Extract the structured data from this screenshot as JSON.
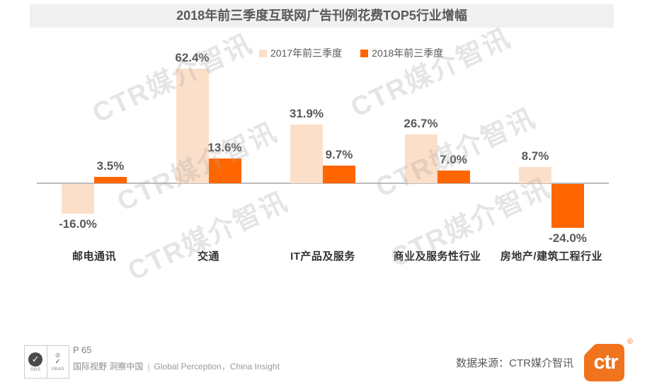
{
  "title_bar": "2018年前三季度互联网广告刊例花费TOP5行业增幅",
  "watermark_text": "CTR媒介智讯",
  "colors": {
    "bar_2017": "#FCDFC9",
    "bar_2018": "#FF6600",
    "axis": "#BDBDBD",
    "title_bg": "#F0F0F0",
    "text_dark": "#595959",
    "logo_orange": "#F0731E"
  },
  "chart_data": {
    "type": "bar",
    "title": "2018年前三季度互联网广告刊例花费TOP5行业增幅",
    "categories": [
      "邮电通讯",
      "交通",
      "IT产品及服务",
      "商业及服务性行业",
      "房地产/建筑工程行业"
    ],
    "series": [
      {
        "name": "2017年前三季度",
        "color": "#FCDFC9",
        "values": [
          -16.0,
          62.4,
          31.9,
          26.7,
          8.7
        ]
      },
      {
        "name": "2018年前三季度",
        "color": "#FF6600",
        "values": [
          3.5,
          13.6,
          9.7,
          7.0,
          -24.0
        ]
      }
    ],
    "value_label_suffix": "%",
    "ylim": [
      -30,
      70
    ],
    "baseline": 0,
    "grid": false,
    "legend_position": "top-center"
  },
  "footer": {
    "page_label": "P 65",
    "tagline_cn": "国际视野 洞察中国",
    "tagline_sep": "|",
    "tagline_en": "Global Perception，China Insight",
    "source": "数据来源：CTR媒介智讯",
    "cert_sgs": "SGS",
    "cert_sgs_check": "✓",
    "cert_ukas": "UKAS",
    "cert_ukas_crown": "♔",
    "cert_ukas_check": "✓",
    "logo_text": "ctr",
    "registered_mark": "®"
  }
}
